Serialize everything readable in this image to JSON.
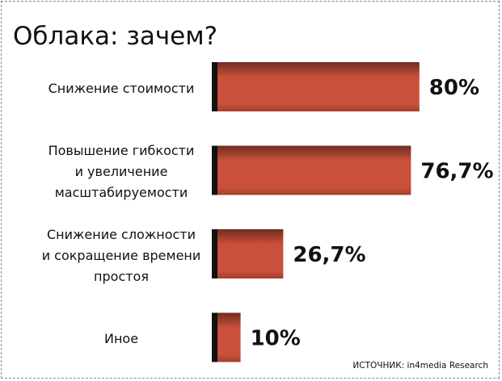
{
  "chart_data": {
    "type": "bar",
    "orientation": "horizontal",
    "title": "Облака: зачем?",
    "categories": [
      "Снижение стоимости",
      "Повышение гибкости\nи увеличение\nмасштабируемости",
      "Снижение сложности\nи сокращение времени\nпростоя",
      "Иное"
    ],
    "values": [
      80,
      76.7,
      26.7,
      10
    ],
    "value_labels": [
      "80%",
      "76,7%",
      "26,7%",
      "10%"
    ],
    "color": "#c9503a",
    "source": "ИСТОЧНИК: in4media Research"
  }
}
